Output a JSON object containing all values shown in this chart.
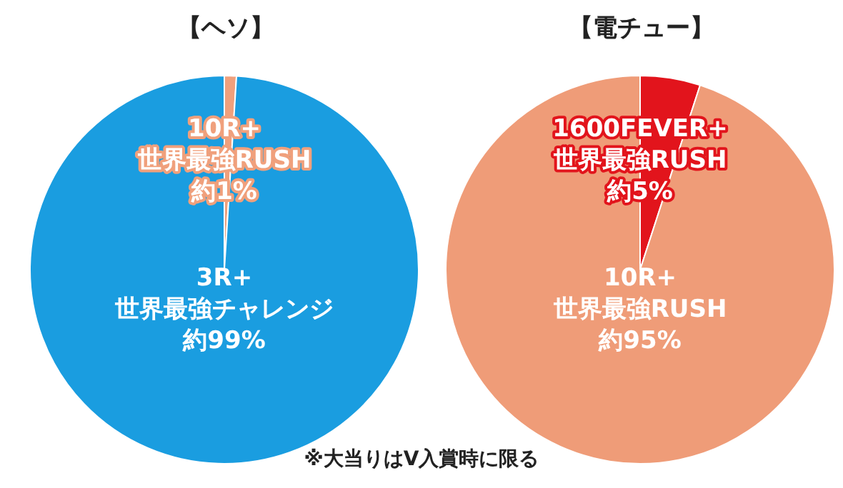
{
  "chart_data": [
    {
      "type": "pie",
      "title": "【ヘソ】",
      "categories": [
        "10R+\n世界最強RUSH",
        "3R+\n世界最強チャレンジ"
      ],
      "values": [
        1,
        99
      ],
      "colors": [
        "#f0a07c",
        "#1a9de0"
      ],
      "value_labels": [
        "約1%",
        "約99%"
      ],
      "legend": false
    },
    {
      "type": "pie",
      "title": "【電チュー】",
      "categories": [
        "1600FEVER+\n世界最強RUSH",
        "10R+\n世界最強RUSH"
      ],
      "values": [
        5,
        95
      ],
      "colors": [
        "#e2141c",
        "#ef9c78"
      ],
      "value_labels": [
        "約5%",
        "約95%"
      ],
      "legend": false,
      "annotations": [
        "※大当りはV入賞時に限る"
      ]
    }
  ]
}
